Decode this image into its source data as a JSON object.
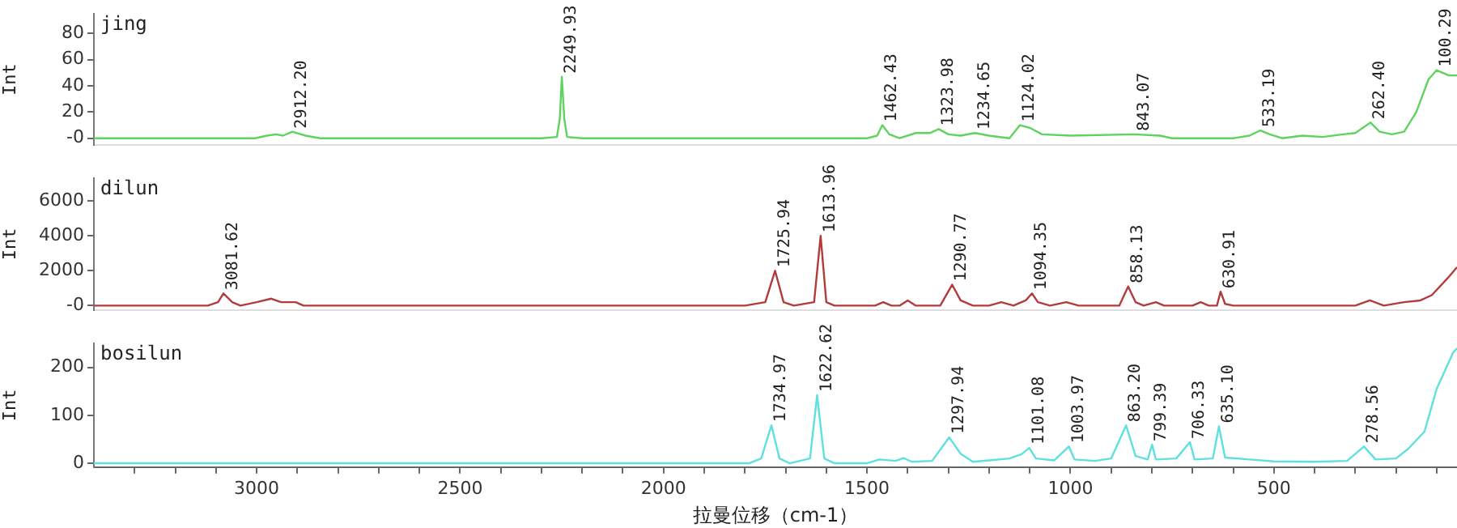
{
  "chart_data": [
    {
      "type": "line",
      "title": "jing",
      "ylabel": "Int",
      "xlim": [
        3400,
        50
      ],
      "ylim": [
        -5,
        95
      ],
      "yticks": [
        {
          "value": 0,
          "label": "-0"
        },
        20,
        40,
        60,
        80
      ],
      "tick_labels": "y",
      "grid": false,
      "legend": false,
      "marker": "none",
      "line_style": "solid",
      "series": [
        {
          "color": "#5fd35f",
          "x": [
            3400,
            3050,
            3004,
            2975,
            2952,
            2935,
            2912.2,
            2880,
            2844,
            2300,
            2262,
            2255,
            2249.93,
            2244,
            2237,
            2200,
            1500,
            1475,
            1462.43,
            1445,
            1420,
            1380,
            1345,
            1323.98,
            1300,
            1270,
            1234.65,
            1200,
            1150,
            1124.02,
            1100,
            1070,
            1000,
            843.07,
            780,
            750,
            600,
            560,
            533.19,
            510,
            480,
            430,
            380,
            330,
            300,
            262.4,
            240,
            210,
            180,
            150,
            120,
            100.29,
            70,
            50
          ],
          "values": [
            0,
            0,
            0,
            2,
            3,
            2,
            5,
            2,
            0,
            0,
            1,
            15,
            47,
            15,
            1,
            0,
            0,
            2,
            10,
            3,
            0,
            4,
            4,
            7,
            3,
            2,
            4,
            2,
            0,
            10,
            8,
            3,
            2,
            3,
            2,
            0,
            0,
            2,
            6,
            3,
            0,
            2,
            1,
            3,
            4,
            12,
            5,
            3,
            5,
            20,
            45,
            52,
            48,
            48
          ]
        }
      ],
      "annotations": [
        {
          "text": "2912.20",
          "x": 2912.2,
          "y": 5
        },
        {
          "text": "2249.93",
          "x": 2249.93,
          "y": 47
        },
        {
          "text": "1462.43",
          "x": 1462.43,
          "y": 10
        },
        {
          "text": "1323.98",
          "x": 1323.98,
          "y": 7
        },
        {
          "text": "1234.65",
          "x": 1234.65,
          "y": 4
        },
        {
          "text": "1124.02",
          "x": 1124.02,
          "y": 10
        },
        {
          "text": "843.07",
          "x": 843.07,
          "y": 3
        },
        {
          "text": "533.19",
          "x": 533.19,
          "y": 6
        },
        {
          "text": "262.40",
          "x": 262.4,
          "y": 12
        },
        {
          "text": "100.29",
          "x": 100.29,
          "y": 52
        }
      ]
    },
    {
      "type": "line",
      "title": "dilun",
      "ylabel": "Int",
      "xlim": [
        3400,
        50
      ],
      "ylim": [
        -250,
        7300
      ],
      "yticks": [
        {
          "value": 0,
          "label": "-0"
        },
        2000,
        4000,
        6000
      ],
      "tick_labels": "y",
      "grid": false,
      "legend": false,
      "marker": "none",
      "line_style": "solid",
      "series": [
        {
          "color": "#b23b3b",
          "x": [
            3400,
            3120,
            3095,
            3081.62,
            3060,
            3040,
            3000,
            2964,
            2940,
            2920,
            2904,
            2885,
            1800,
            1750,
            1725.94,
            1705,
            1680,
            1630,
            1613.96,
            1600,
            1580,
            1480,
            1460,
            1440,
            1420,
            1400,
            1380,
            1320,
            1290.77,
            1270,
            1240,
            1200,
            1170,
            1140,
            1110,
            1094.35,
            1080,
            1050,
            1010,
            980,
            880,
            858.13,
            840,
            820,
            790,
            770,
            700,
            680,
            660,
            640,
            630.91,
            620,
            600,
            300,
            264,
            230,
            180,
            140,
            112,
            72,
            50
          ],
          "values": [
            0,
            0,
            200,
            700,
            200,
            0,
            200,
            400,
            200,
            200,
            200,
            0,
            0,
            200,
            2000,
            200,
            0,
            200,
            4000,
            200,
            0,
            0,
            200,
            0,
            0,
            300,
            0,
            0,
            1200,
            300,
            0,
            0,
            200,
            0,
            300,
            700,
            200,
            0,
            200,
            0,
            0,
            1100,
            200,
            0,
            200,
            0,
            0,
            200,
            0,
            0,
            800,
            100,
            0,
            0,
            300,
            0,
            200,
            300,
            600,
            1600,
            2200
          ]
        }
      ],
      "annotations": [
        {
          "text": "3081.62",
          "x": 3081.62,
          "y": 700
        },
        {
          "text": "1725.94",
          "x": 1725.94,
          "y": 2000
        },
        {
          "text": "1613.96",
          "x": 1613.96,
          "y": 4000
        },
        {
          "text": "1290.77",
          "x": 1290.77,
          "y": 1200
        },
        {
          "text": "1094.35",
          "x": 1094.35,
          "y": 700
        },
        {
          "text": "858.13",
          "x": 858.13,
          "y": 1100
        },
        {
          "text": "630.91",
          "x": 630.91,
          "y": 800
        }
      ]
    },
    {
      "type": "line",
      "title": "bosilun",
      "ylabel": "Int",
      "xlabel": "拉曼位移（cm-1）",
      "xlim": [
        3400,
        50
      ],
      "ylim": [
        -8,
        250
      ],
      "yticks": [
        0,
        100,
        200
      ],
      "xticks": [
        {
          "value": 3300,
          "label": null
        },
        {
          "value": 3200,
          "label": null
        },
        {
          "value": 3100,
          "label": null
        },
        3000,
        {
          "value": 2900,
          "label": null
        },
        {
          "value": 2800,
          "label": null
        },
        {
          "value": 2700,
          "label": null
        },
        {
          "value": 2600,
          "label": null
        },
        2500,
        {
          "value": 2400,
          "label": null
        },
        {
          "value": 2300,
          "label": null
        },
        {
          "value": 2200,
          "label": null
        },
        {
          "value": 2100,
          "label": null
        },
        2000,
        {
          "value": 1900,
          "label": null
        },
        {
          "value": 1800,
          "label": null
        },
        {
          "value": 1700,
          "label": null
        },
        {
          "value": 1600,
          "label": null
        },
        1500,
        {
          "value": 1400,
          "label": null
        },
        {
          "value": 1300,
          "label": null
        },
        {
          "value": 1200,
          "label": null
        },
        {
          "value": 1100,
          "label": null
        },
        1000,
        {
          "value": 900,
          "label": null
        },
        {
          "value": 800,
          "label": null
        },
        {
          "value": 700,
          "label": null
        },
        {
          "value": 600,
          "label": null
        },
        500,
        {
          "value": 400,
          "label": null
        },
        {
          "value": 300,
          "label": null
        },
        {
          "value": 200,
          "label": null
        },
        {
          "value": 100,
          "label": null
        }
      ],
      "grid": false,
      "legend": false,
      "marker": "none",
      "line_style": "solid",
      "series": [
        {
          "color": "#5ee0e0",
          "x": [
            3400,
            1790,
            1760,
            1734.97,
            1715,
            1690,
            1640,
            1622.62,
            1605,
            1580,
            1500,
            1470,
            1430,
            1410,
            1390,
            1340,
            1297.94,
            1270,
            1240,
            1200,
            1150,
            1120,
            1101.08,
            1085,
            1040,
            1003.97,
            990,
            940,
            900,
            863.2,
            840,
            810,
            799.39,
            790,
            740,
            706.33,
            695,
            650,
            635.1,
            620,
            560,
            500,
            400,
            320,
            278.56,
            250,
            200,
            170,
            130,
            100,
            60,
            50
          ],
          "values": [
            0,
            0,
            10,
            79,
            10,
            0,
            10,
            142,
            10,
            0,
            0,
            8,
            5,
            11,
            3,
            5,
            54,
            20,
            3,
            6,
            10,
            19,
            32,
            10,
            6,
            35,
            8,
            5,
            10,
            79,
            15,
            8,
            39,
            8,
            10,
            44,
            8,
            10,
            77,
            12,
            8,
            4,
            3,
            5,
            35,
            8,
            10,
            30,
            66,
            155,
            230,
            240
          ]
        }
      ],
      "annotations": [
        {
          "text": "1734.97",
          "x": 1734.97,
          "y": 79
        },
        {
          "text": "1622.62",
          "x": 1622.62,
          "y": 142
        },
        {
          "text": "1297.94",
          "x": 1297.94,
          "y": 54
        },
        {
          "text": "1101.08",
          "x": 1101.08,
          "y": 32
        },
        {
          "text": "1003.97",
          "x": 1003.97,
          "y": 35
        },
        {
          "text": "863.20",
          "x": 863.2,
          "y": 79
        },
        {
          "text": "799.39",
          "x": 799.39,
          "y": 39
        },
        {
          "text": "706.33",
          "x": 706.33,
          "y": 44
        },
        {
          "text": "635.10",
          "x": 635.1,
          "y": 77
        },
        {
          "text": "278.56",
          "x": 278.56,
          "y": 35
        }
      ]
    }
  ]
}
